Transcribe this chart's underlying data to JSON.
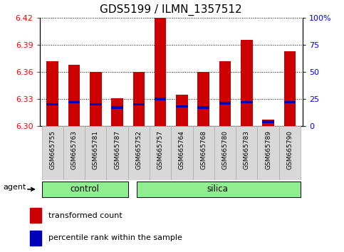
{
  "title": "GDS5199 / ILMN_1357512",
  "samples": [
    "GSM665755",
    "GSM665763",
    "GSM665781",
    "GSM665787",
    "GSM665752",
    "GSM665757",
    "GSM665764",
    "GSM665768",
    "GSM665780",
    "GSM665783",
    "GSM665789",
    "GSM665790"
  ],
  "groups": [
    "control",
    "control",
    "control",
    "control",
    "silica",
    "silica",
    "silica",
    "silica",
    "silica",
    "silica",
    "silica",
    "silica"
  ],
  "transformed_count": [
    6.372,
    6.368,
    6.36,
    6.331,
    6.36,
    6.42,
    6.335,
    6.36,
    6.372,
    6.395,
    6.307,
    6.383
  ],
  "percentile_rank": [
    20,
    22,
    20,
    17,
    20,
    25,
    18,
    17,
    21,
    22,
    4,
    22
  ],
  "ymin": 6.3,
  "ymax": 6.42,
  "yticks_left": [
    6.3,
    6.33,
    6.36,
    6.39,
    6.42
  ],
  "yticks_right": [
    0,
    25,
    50,
    75,
    100
  ],
  "bar_color_red": "#cc0000",
  "bar_color_blue": "#0000bb",
  "green_color": "#90ee90",
  "legend_red": "transformed count",
  "legend_blue": "percentile rank within the sample",
  "agent_label": "agent",
  "title_fontsize": 11,
  "tick_fontsize": 8,
  "label_fontsize": 8,
  "bar_width": 0.55
}
